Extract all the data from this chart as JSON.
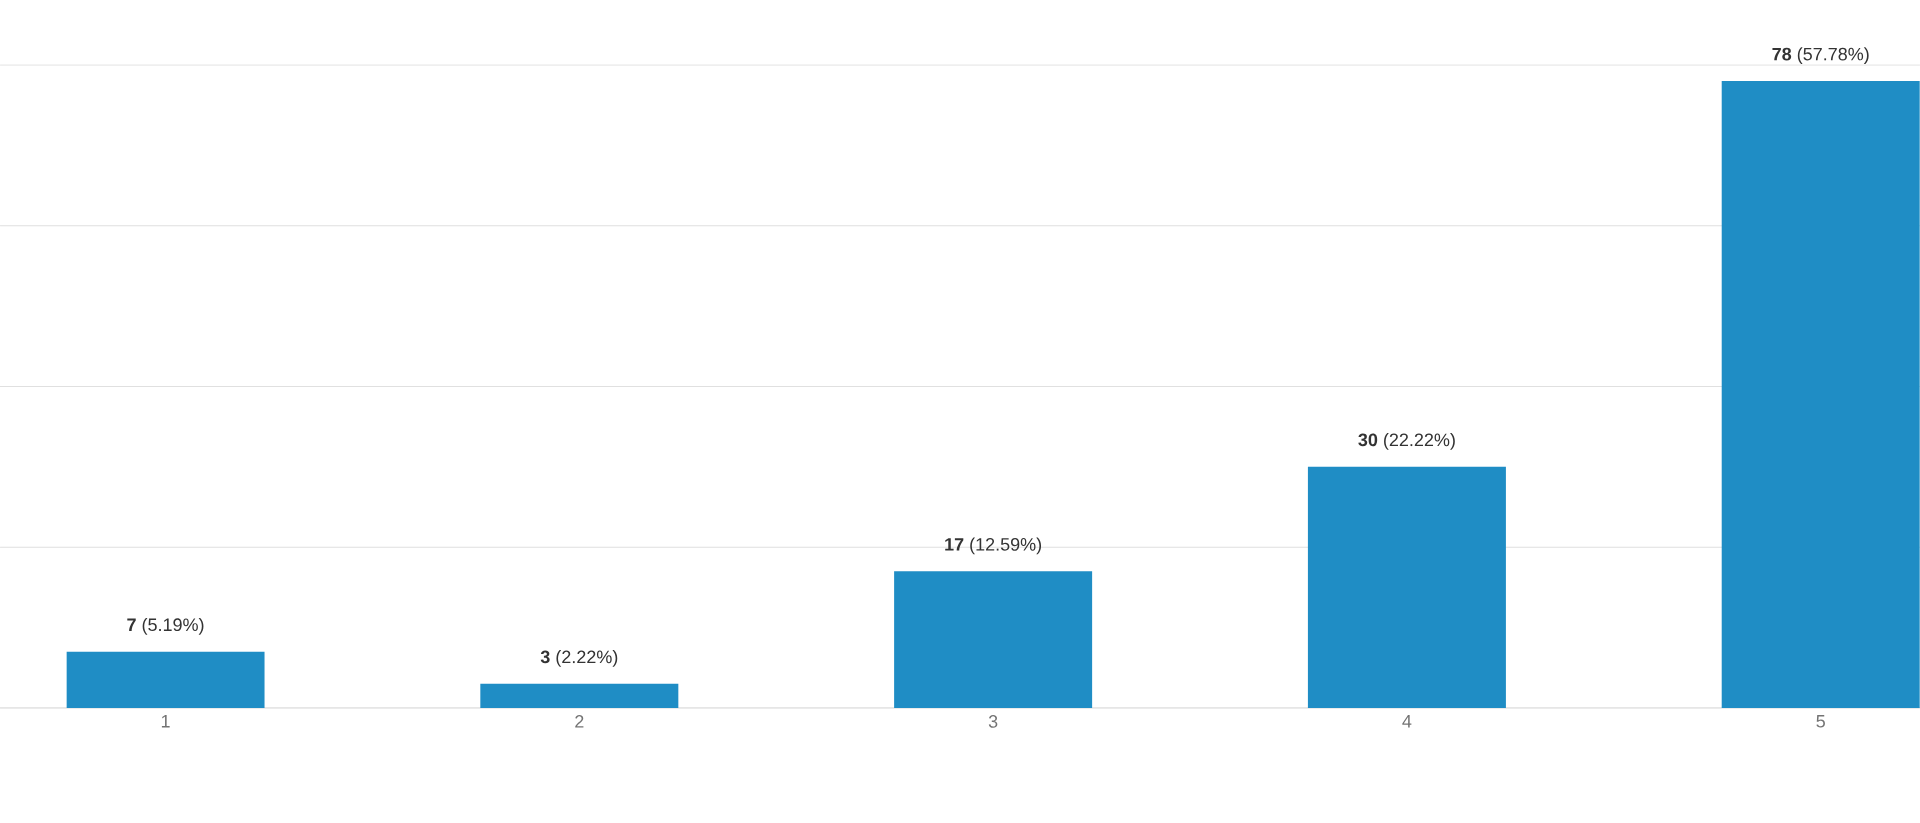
{
  "chart_data": {
    "type": "bar",
    "categories": [
      "1",
      "2",
      "3",
      "4",
      "5"
    ],
    "values": [
      7,
      3,
      17,
      30,
      78
    ],
    "color": "#1f8dc5",
    "value_labels": [
      "**7** (5.19%)",
      "**3** (2.22%)",
      "**17** (12.59%)",
      "**30** (22.22%)",
      "**78** (57.78%)"
    ],
    "ylim": [
      0,
      80
    ],
    "yticks": [
      {
        "value": 0,
        "label": null
      },
      {
        "value": 20,
        "label": null
      },
      {
        "value": 40,
        "label": null
      },
      {
        "value": 60,
        "label": null
      },
      {
        "value": 80,
        "label": null
      }
    ],
    "grid": "y",
    "tick_labels": "x"
  }
}
